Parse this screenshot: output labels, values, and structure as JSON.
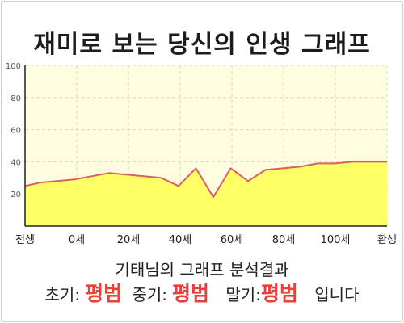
{
  "page": {
    "title": "재미로 보는 당신의 인생 그래프",
    "subtitle": "기태님의 그래프 분석결과",
    "result": {
      "early_label": "초기:",
      "early_value": "평범",
      "mid_label": "중기:",
      "mid_value": "평범",
      "late_label": "말기:",
      "late_value": "평범",
      "suffix": "입니다"
    }
  },
  "colors": {
    "plot_background": "#fffde0",
    "area_fill": "#ffff66",
    "line": "#d9605f",
    "highlight_text": "#e8413b"
  },
  "chart_data": {
    "type": "area",
    "title": "재미로 보는 당신의 인생 그래프",
    "xlabel": "",
    "ylabel": "",
    "x_tick_labels": [
      "전생",
      "0세",
      "20세",
      "40세",
      "60세",
      "80세",
      "100세",
      "환생"
    ],
    "y_ticks": [
      20,
      40,
      60,
      80,
      100
    ],
    "ylim": [
      0,
      100
    ],
    "grid": true,
    "series": [
      {
        "x": [
          -5,
          0,
          12,
          18,
          24,
          30,
          36,
          42,
          48,
          54,
          60,
          66,
          72,
          78,
          84,
          90,
          96,
          102,
          108,
          114,
          120
        ],
        "values": [
          25,
          27,
          29,
          31,
          33,
          32,
          31,
          30,
          25,
          36,
          18,
          36,
          28,
          35,
          36,
          37,
          39,
          39,
          40,
          40,
          40
        ]
      }
    ]
  }
}
